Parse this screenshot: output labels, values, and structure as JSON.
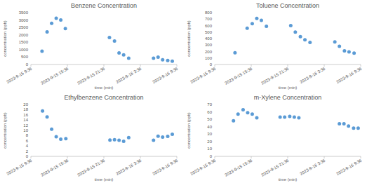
{
  "chart_data": [
    {
      "type": "scatter",
      "title": "Benzene Concentration",
      "x_label": "time (min)",
      "y_label": "concentration (ppb)",
      "x": [
        110,
        160,
        205,
        250,
        295,
        340,
        775,
        825,
        870,
        915,
        965,
        1210,
        1255,
        1300,
        1350,
        1395
      ],
      "values": [
        900,
        2200,
        2780,
        3120,
        3000,
        2420,
        1820,
        1580,
        780,
        650,
        430,
        430,
        500,
        320,
        270,
        220
      ],
      "color": "#5b9bd5",
      "marker": "circle",
      "grid": false,
      "xlim": [
        0,
        1440
      ],
      "xticks": [
        {
          "value": 0,
          "label": "2023-9-15 9:36"
        },
        {
          "value": 360,
          "label": "2023-9-15 15:36"
        },
        {
          "value": 720,
          "label": "2023-9-15 21:36"
        },
        {
          "value": 1080,
          "label": "2023-9-16 3:36"
        },
        {
          "value": 1440,
          "label": "2023-9-16 9:36"
        }
      ],
      "ylim": [
        0,
        3500
      ],
      "yticks": [
        0,
        500,
        1000,
        1500,
        2000,
        2500,
        3000,
        3500
      ]
    },
    {
      "type": "scatter",
      "title": "Toluene Concentration",
      "x_label": "time (min)",
      "y_label": "concentration (ppb)",
      "x": [
        200,
        320,
        370,
        415,
        460,
        510,
        750,
        795,
        845,
        890,
        940,
        1185,
        1230,
        1280,
        1325,
        1375
      ],
      "values": [
        180,
        560,
        630,
        710,
        680,
        590,
        600,
        500,
        430,
        380,
        340,
        350,
        280,
        210,
        195,
        175
      ],
      "color": "#5b9bd5",
      "marker": "circle",
      "grid": false,
      "xlim": [
        0,
        1440
      ],
      "xticks": [
        {
          "value": 0,
          "label": "2023-9-15 9:36"
        },
        {
          "value": 360,
          "label": "2023-9-15 15:36"
        },
        {
          "value": 720,
          "label": "2023-9-15 21:36"
        },
        {
          "value": 1080,
          "label": "2023-9-16 3:36"
        },
        {
          "value": 1440,
          "label": "2023-9-16 9:36"
        }
      ],
      "ylim": [
        0,
        800
      ],
      "yticks": [
        0,
        100,
        200,
        300,
        400,
        500,
        600,
        700,
        800
      ]
    },
    {
      "type": "scatter",
      "title": "Ethylbenzene Concentration",
      "x_label": "time (min)",
      "y_label": "concentration (ppb)",
      "x": [
        115,
        160,
        205,
        250,
        295,
        345,
        780,
        825,
        870,
        915,
        965,
        1210,
        1255,
        1300,
        1350,
        1395
      ],
      "values": [
        17.5,
        15.2,
        10.5,
        7.6,
        6.6,
        6.8,
        6.3,
        6.4,
        6.2,
        5.8,
        7.2,
        6.2,
        7.8,
        7.4,
        7.7,
        8.5
      ],
      "color": "#5b9bd5",
      "marker": "circle",
      "grid": false,
      "xlim": [
        0,
        1440
      ],
      "xticks": [
        {
          "value": 0,
          "label": "2023-9-15 9:36"
        },
        {
          "value": 360,
          "label": "2023-9-15 15:36"
        },
        {
          "value": 720,
          "label": "2023-9-15 21:36"
        },
        {
          "value": 1080,
          "label": "2023-9-16 3:36"
        },
        {
          "value": 1440,
          "label": "2023-9-16 9:36"
        }
      ],
      "ylim": [
        0,
        20
      ],
      "yticks": [
        0,
        2,
        4,
        6,
        8,
        10,
        12,
        14,
        16,
        18,
        20
      ]
    },
    {
      "type": "scatter",
      "title": "m-Xylene Concentration",
      "x_label": "time (min)",
      "y_label": "concentration (ppb)",
      "x": [
        185,
        230,
        280,
        325,
        370,
        415,
        645,
        690,
        740,
        785,
        830,
        1230,
        1275,
        1320,
        1370,
        1415
      ],
      "values": [
        48,
        57,
        63,
        59,
        57,
        52,
        53,
        53,
        54,
        53,
        52,
        44,
        44,
        41,
        38,
        38
      ],
      "color": "#5b9bd5",
      "marker": "circle",
      "grid": false,
      "xlim": [
        0,
        1440
      ],
      "xticks": [
        {
          "value": 0,
          "label": "2023-9-15 9:36"
        },
        {
          "value": 360,
          "label": "2023-9-15 15:36"
        },
        {
          "value": 720,
          "label": "2023-9-15 21:36"
        },
        {
          "value": 1080,
          "label": "2023-9-16 3:36"
        },
        {
          "value": 1440,
          "label": "2023-9-16 9:36"
        }
      ],
      "ylim": [
        0,
        70
      ],
      "yticks": [
        0,
        10,
        20,
        30,
        40,
        50,
        60,
        70
      ]
    }
  ]
}
